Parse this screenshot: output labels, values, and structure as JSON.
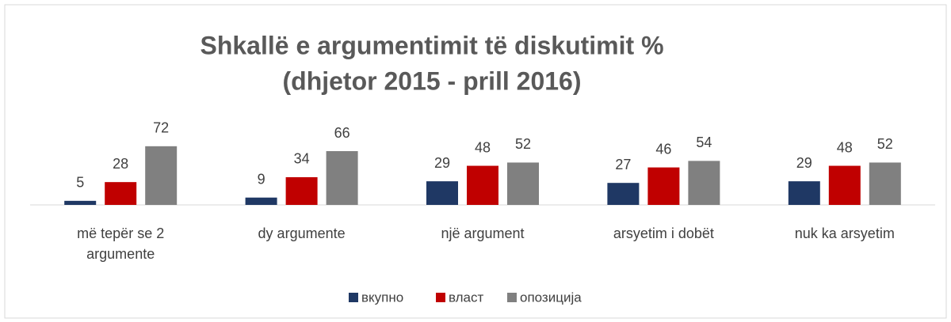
{
  "chart_data": {
    "type": "bar",
    "title": [
      "Shkallë e argumentimit të diskutimit %",
      "(dhjetor 2015 - prill 2016)"
    ],
    "categories": [
      "më tepër se 2 argumente",
      "dy argumente",
      "një argument",
      "arsyetim i dobët",
      "nuk ka arsyetim"
    ],
    "series": [
      {
        "name": "вкупно",
        "color": "#1f3864",
        "values": [
          5,
          9,
          29,
          27,
          29
        ]
      },
      {
        "name": "власт",
        "color": "#c00000",
        "values": [
          28,
          34,
          48,
          46,
          48
        ]
      },
      {
        "name": "опозиција",
        "color": "#808080",
        "values": [
          72,
          66,
          52,
          54,
          52
        ]
      }
    ],
    "ylim": [
      0,
      100
    ],
    "legend": "bottom"
  }
}
